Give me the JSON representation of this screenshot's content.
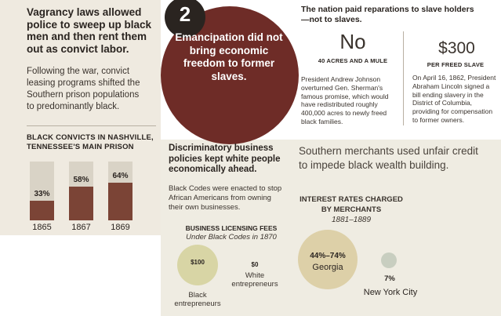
{
  "headline": "Vagrancy laws allowed police to sweep up black men and then rent them out as convict labor.",
  "intro": "Following the war, convict leasing programs shifted the Southern prison populations to predominantly black.",
  "chart_data": {
    "type": "bar",
    "title": "BLACK CONVICTS IN NASHVILLE, TENNESSEE'S MAIN PRISON",
    "categories": [
      "1865",
      "1867",
      "1869"
    ],
    "values": [
      33,
      58,
      64
    ],
    "value_labels": [
      "33%",
      "58%",
      "64%"
    ],
    "ylim": [
      0,
      100
    ],
    "xlabel": "",
    "ylabel": ""
  },
  "section_number": "2",
  "main_statement": "Emancipation did not bring economic freedom to former slaves.",
  "reparations": {
    "title": "The nation paid reparations to slave holders—not to slaves.",
    "no": {
      "value": "No",
      "label": "40 ACRES AND A MULE",
      "body": "President Andrew Johnson overturned Gen. Sherman's famous promise, which would have redistributed roughly 400,000 acres to newly freed black families."
    },
    "paid": {
      "value": "$300",
      "label": "PER FREED SLAVE",
      "body": "On April 16, 1862, President Abraham Lincoln signed a bill ending slavery in the District of Columbia, providing for compensation to former owners."
    }
  },
  "discrimination": {
    "title": "Discriminatory business policies kept white people economically ahead.",
    "body": "Black Codes were enacted to stop African Americans from owning their own businesses.",
    "fees_title": "BUSINESS LICENSING FEES",
    "fees_subtitle": "Under Black Codes in 1870",
    "fees": [
      {
        "value": "$100",
        "label": "Black entrepreneurs"
      },
      {
        "value": "$0",
        "label": "White entrepreneurs"
      }
    ]
  },
  "merchants": {
    "text": "Southern merchants used unfair credit to impede black wealth building.",
    "rates_title": "INTEREST RATES CHARGED BY MERCHANTS",
    "rates_years": "1881–1889",
    "rates": [
      {
        "value": "44%–74%",
        "label": "Georgia"
      },
      {
        "value": "7%",
        "label": "New York City"
      }
    ]
  },
  "colors": {
    "maroon": "#6e2c27",
    "bar_fill": "#7b4436",
    "bar_bg": "#d9d3c6",
    "beige": "#efeae0"
  }
}
